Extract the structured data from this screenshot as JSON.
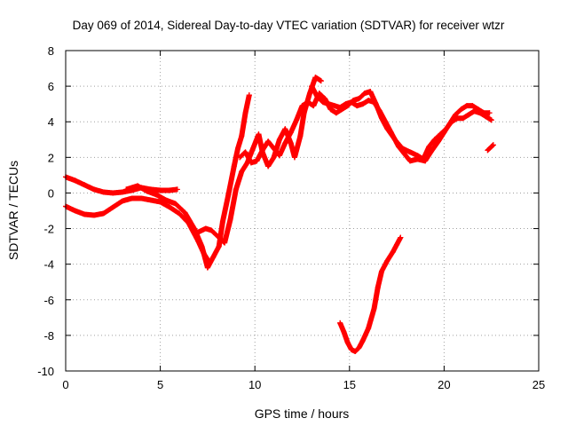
{
  "chart_data": {
    "type": "scatter",
    "title": "Day 069 of 2014, Sidereal Day-to-day VTEC variation (SDTVAR) for receiver wtzr",
    "xlabel": "GPS time / hours",
    "ylabel": "SDTVAR / TECUs",
    "xlim": [
      0,
      25
    ],
    "ylim": [
      -10,
      8
    ],
    "xticks": [
      "0",
      "5",
      "10",
      "15",
      "20",
      "25"
    ],
    "yticks": [
      "-10",
      "-8",
      "-6",
      "-4",
      "-2",
      "0",
      "2",
      "4",
      "6",
      "8"
    ],
    "grid": true,
    "marker": "plus",
    "color": "#ff0000",
    "series": [
      {
        "points": [
          [
            0,
            0.9
          ],
          [
            0.5,
            0.7
          ],
          [
            1,
            0.45
          ],
          [
            1.5,
            0.2
          ],
          [
            2,
            0.05
          ],
          [
            2.5,
            0
          ],
          [
            3,
            0.05
          ],
          [
            3.5,
            0.15
          ],
          [
            4,
            0.3
          ],
          [
            4.5,
            0.2
          ],
          [
            5,
            0.15
          ],
          [
            5.5,
            0.15
          ],
          [
            5.9,
            0.2
          ]
        ]
      },
      {
        "points": [
          [
            0,
            -0.75
          ],
          [
            0.5,
            -1
          ],
          [
            1,
            -1.2
          ],
          [
            1.5,
            -1.25
          ],
          [
            2,
            -1.15
          ],
          [
            2.5,
            -0.8
          ],
          [
            3,
            -0.45
          ],
          [
            3.5,
            -0.3
          ],
          [
            4,
            -0.3
          ],
          [
            4.5,
            -0.4
          ],
          [
            5,
            -0.5
          ],
          [
            5.5,
            -0.8
          ],
          [
            6,
            -1.15
          ],
          [
            6.5,
            -1.7
          ],
          [
            7,
            -2.7
          ],
          [
            7.3,
            -3.4
          ],
          [
            7.6,
            -3.9
          ]
        ]
      },
      {
        "points": [
          [
            3.2,
            0.2
          ],
          [
            3.8,
            0.4
          ],
          [
            4.3,
            0.1
          ],
          [
            4.8,
            -0.1
          ],
          [
            5.3,
            -0.4
          ],
          [
            5.8,
            -0.6
          ],
          [
            6.3,
            -1.1
          ],
          [
            6.8,
            -2.0
          ],
          [
            7.2,
            -3.0
          ],
          [
            7.5,
            -4.2
          ],
          [
            7.8,
            -3.6
          ],
          [
            8.1,
            -3.0
          ],
          [
            8.3,
            -1.6
          ],
          [
            8.6,
            -0.1
          ],
          [
            8.9,
            1.5
          ],
          [
            9.1,
            2.5
          ],
          [
            9.3,
            3.2
          ],
          [
            9.5,
            4.5
          ],
          [
            9.7,
            5.5
          ]
        ]
      },
      {
        "points": [
          [
            7.0,
            -2.2
          ],
          [
            7.4,
            -2.0
          ],
          [
            7.7,
            -2.1
          ],
          [
            8.0,
            -2.4
          ],
          [
            8.4,
            -2.8
          ],
          [
            8.7,
            -1.5
          ],
          [
            9.0,
            0.2
          ],
          [
            9.3,
            1.2
          ],
          [
            9.6,
            1.7
          ],
          [
            9.9,
            2.5
          ],
          [
            10.2,
            3.3
          ],
          [
            10.4,
            2.3
          ],
          [
            10.7,
            1.5
          ],
          [
            11.0,
            2.0
          ],
          [
            11.3,
            3.0
          ],
          [
            11.6,
            3.6
          ],
          [
            11.9,
            2.8
          ],
          [
            12.1,
            2.0
          ],
          [
            12.4,
            3.2
          ],
          [
            12.6,
            4.5
          ],
          [
            12.9,
            5.6
          ],
          [
            13.2,
            6.5
          ],
          [
            13.5,
            6.3
          ]
        ]
      },
      {
        "points": [
          [
            9.2,
            2.0
          ],
          [
            9.5,
            2.3
          ],
          [
            9.8,
            1.7
          ],
          [
            10.1,
            1.8
          ],
          [
            10.4,
            2.4
          ],
          [
            10.7,
            2.9
          ],
          [
            11.0,
            2.5
          ],
          [
            11.3,
            2.1
          ],
          [
            11.6,
            2.8
          ],
          [
            11.9,
            3.4
          ],
          [
            12.2,
            4.1
          ],
          [
            12.5,
            4.9
          ],
          [
            12.8,
            5.1
          ],
          [
            13.1,
            4.9
          ],
          [
            13.4,
            5.6
          ],
          [
            13.7,
            5.3
          ],
          [
            14.0,
            4.7
          ],
          [
            14.3,
            4.5
          ],
          [
            14.6,
            4.7
          ],
          [
            14.9,
            4.9
          ],
          [
            15.2,
            5.2
          ],
          [
            15.5,
            5.3
          ],
          [
            15.8,
            5.6
          ],
          [
            16.1,
            5.7
          ],
          [
            16.4,
            5.0
          ],
          [
            16.7,
            4.2
          ],
          [
            17.0,
            3.6
          ],
          [
            17.4,
            3.0
          ],
          [
            17.8,
            2.5
          ],
          [
            18.2,
            2.3
          ],
          [
            18.6,
            2.1
          ],
          [
            18.9,
            1.9
          ],
          [
            19.2,
            2.6
          ],
          [
            19.5,
            3.0
          ],
          [
            19.8,
            3.3
          ],
          [
            20.1,
            3.6
          ],
          [
            20.4,
            4.0
          ],
          [
            20.7,
            4.2
          ],
          [
            21.0,
            4.2
          ],
          [
            21.3,
            4.4
          ],
          [
            21.6,
            4.6
          ],
          [
            21.9,
            4.5
          ],
          [
            22.2,
            4.3
          ],
          [
            22.5,
            4.1
          ]
        ]
      },
      {
        "points": [
          [
            13.0,
            6.0
          ],
          [
            13.3,
            5.4
          ],
          [
            13.6,
            5.1
          ],
          [
            13.9,
            5.0
          ],
          [
            14.2,
            4.9
          ],
          [
            14.5,
            4.8
          ],
          [
            14.8,
            5.0
          ],
          [
            15.1,
            5.1
          ],
          [
            15.4,
            4.9
          ],
          [
            15.7,
            5.0
          ],
          [
            16.0,
            5.2
          ],
          [
            16.3,
            5.1
          ],
          [
            16.6,
            4.6
          ],
          [
            16.9,
            4.0
          ],
          [
            17.2,
            3.4
          ],
          [
            17.6,
            2.6
          ],
          [
            17.9,
            2.2
          ],
          [
            18.2,
            1.8
          ],
          [
            18.6,
            1.9
          ],
          [
            19.0,
            1.8
          ],
          [
            19.3,
            2.3
          ],
          [
            19.7,
            2.9
          ],
          [
            20.0,
            3.4
          ],
          [
            20.3,
            3.9
          ],
          [
            20.6,
            4.4
          ],
          [
            20.9,
            4.7
          ],
          [
            21.2,
            4.9
          ],
          [
            21.5,
            4.9
          ],
          [
            21.8,
            4.7
          ],
          [
            22.1,
            4.5
          ],
          [
            22.4,
            4.5
          ]
        ]
      },
      {
        "points": [
          [
            14.5,
            -7.3
          ],
          [
            14.7,
            -7.8
          ],
          [
            14.9,
            -8.4
          ],
          [
            15.1,
            -8.8
          ],
          [
            15.3,
            -8.9
          ],
          [
            15.5,
            -8.7
          ],
          [
            15.7,
            -8.3
          ],
          [
            16.0,
            -7.6
          ],
          [
            16.3,
            -6.5
          ],
          [
            16.5,
            -5.3
          ],
          [
            16.7,
            -4.4
          ],
          [
            17.0,
            -3.8
          ],
          [
            17.3,
            -3.3
          ],
          [
            17.5,
            -2.9
          ],
          [
            17.7,
            -2.5
          ]
        ]
      },
      {
        "points": [
          [
            22.3,
            2.4
          ],
          [
            22.5,
            2.6
          ],
          [
            22.6,
            2.7
          ]
        ]
      }
    ]
  }
}
